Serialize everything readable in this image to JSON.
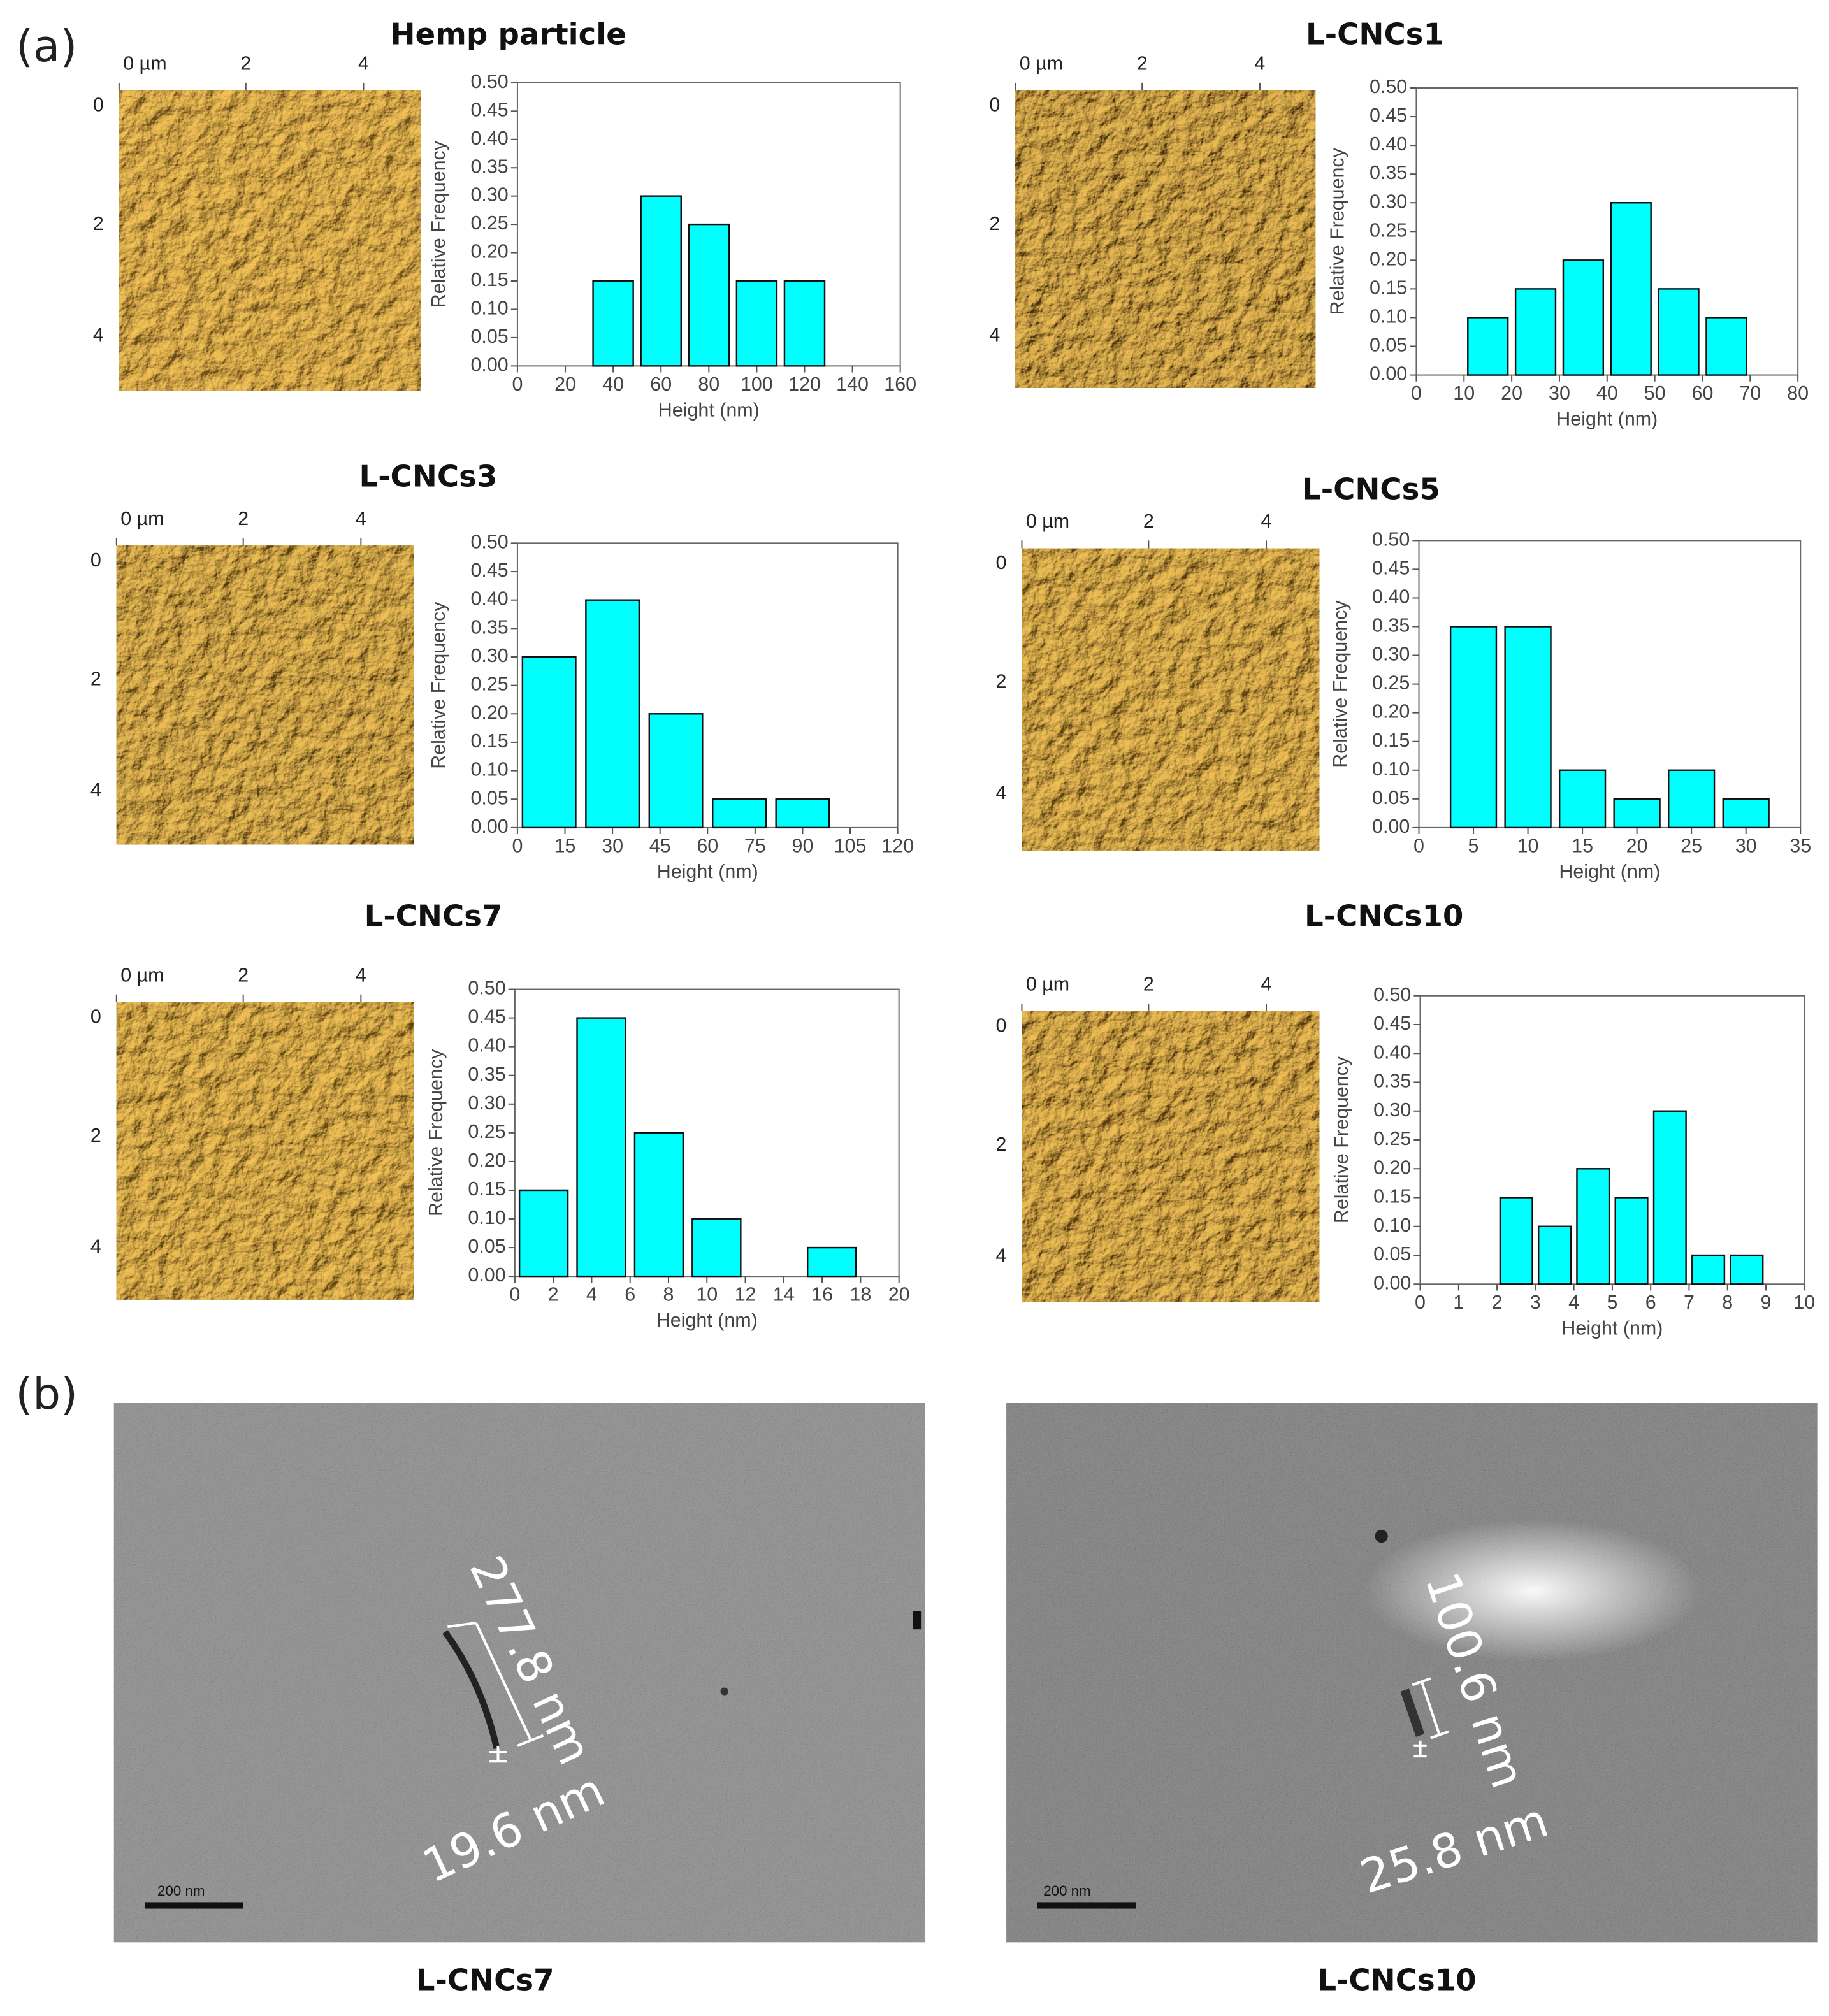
{
  "panel_labels": [
    "(a)",
    "(b)"
  ],
  "afm_axis": {
    "x_labels": [
      "0 µm",
      "2",
      "4"
    ],
    "y_labels": [
      "0",
      "2",
      "4"
    ]
  },
  "tem_images": [
    {
      "label": "L-CNCs7",
      "annotations": [
        "277.8 nm",
        "19.6 nm"
      ],
      "scale_bar": "200 nm"
    },
    {
      "label": "L-CNCs10",
      "annotations": [
        "100.6 nm",
        "25.8 nm"
      ],
      "scale_bar": "200 nm"
    }
  ],
  "chart_data": [
    {
      "type": "bar",
      "title": "Hemp particle",
      "x_label": "Height (nm)",
      "y_label": "Relative Frequency",
      "color": "#00ffff",
      "x": [
        40,
        60,
        80,
        100,
        120
      ],
      "values": [
        0.15,
        0.3,
        0.25,
        0.15,
        0.15
      ],
      "xlim": [
        0,
        160
      ],
      "xticks": [
        0,
        20,
        40,
        60,
        80,
        100,
        120,
        140,
        160
      ],
      "ylim": [
        0,
        0.5
      ],
      "yticks": [
        {
          "value": 0,
          "label": "0.00"
        },
        {
          "value": 0.05,
          "label": "0.05"
        },
        {
          "value": 0.1,
          "label": "0.10"
        },
        {
          "value": 0.15,
          "label": "0.15"
        },
        {
          "value": 0.2,
          "label": "0.20"
        },
        {
          "value": 0.25,
          "label": "0.25"
        },
        {
          "value": 0.3,
          "label": "0.30"
        },
        {
          "value": 0.35,
          "label": "0.35"
        },
        {
          "value": 0.4,
          "label": "0.40"
        },
        {
          "value": 0.45,
          "label": "0.45"
        },
        {
          "value": 0.5,
          "label": "0.50"
        }
      ]
    },
    {
      "type": "bar",
      "title": "L-CNCs1",
      "x_label": "Height (nm)",
      "y_label": "Relative Frequency",
      "color": "#00ffff",
      "x": [
        15,
        25,
        35,
        45,
        55,
        65
      ],
      "values": [
        0.1,
        0.15,
        0.2,
        0.3,
        0.15,
        0.1
      ],
      "xlim": [
        0,
        80
      ],
      "xticks": [
        0,
        10,
        20,
        30,
        40,
        50,
        60,
        70,
        80
      ],
      "ylim": [
        0,
        0.5
      ],
      "yticks": [
        {
          "value": 0,
          "label": "0.00"
        },
        {
          "value": 0.05,
          "label": "0.05"
        },
        {
          "value": 0.1,
          "label": "0.10"
        },
        {
          "value": 0.15,
          "label": "0.15"
        },
        {
          "value": 0.2,
          "label": "0.20"
        },
        {
          "value": 0.25,
          "label": "0.25"
        },
        {
          "value": 0.3,
          "label": "0.30"
        },
        {
          "value": 0.35,
          "label": "0.35"
        },
        {
          "value": 0.4,
          "label": "0.40"
        },
        {
          "value": 0.45,
          "label": "0.45"
        },
        {
          "value": 0.5,
          "label": "0.50"
        }
      ]
    },
    {
      "type": "bar",
      "title": "L-CNCs3",
      "x_label": "Height (nm)",
      "y_label": "Relative Frequency",
      "color": "#00ffff",
      "x": [
        10,
        30,
        50,
        70,
        90
      ],
      "values": [
        0.3,
        0.4,
        0.2,
        0.05,
        0.05
      ],
      "xlim": [
        0,
        120
      ],
      "xticks": [
        0,
        15,
        30,
        45,
        60,
        75,
        90,
        105,
        120
      ],
      "ylim": [
        0,
        0.5
      ],
      "yticks": [
        {
          "value": 0,
          "label": "0.00"
        },
        {
          "value": 0.05,
          "label": "0.05"
        },
        {
          "value": 0.1,
          "label": "0.10"
        },
        {
          "value": 0.15,
          "label": "0.15"
        },
        {
          "value": 0.2,
          "label": "0.20"
        },
        {
          "value": 0.25,
          "label": "0.25"
        },
        {
          "value": 0.3,
          "label": "0.30"
        },
        {
          "value": 0.35,
          "label": "0.35"
        },
        {
          "value": 0.4,
          "label": "0.40"
        },
        {
          "value": 0.45,
          "label": "0.45"
        },
        {
          "value": 0.5,
          "label": "0.50"
        }
      ]
    },
    {
      "type": "bar",
      "title": "L-CNCs5",
      "x_label": "Height (nm)",
      "y_label": "Relative Frequency",
      "color": "#00ffff",
      "x": [
        5,
        10,
        15,
        20,
        25,
        30
      ],
      "values": [
        0.35,
        0.35,
        0.1,
        0.05,
        0.1,
        0.05
      ],
      "xlim": [
        0,
        35
      ],
      "xticks": [
        0,
        5,
        10,
        15,
        20,
        25,
        30,
        35
      ],
      "ylim": [
        0,
        0.5
      ],
      "yticks": [
        {
          "value": 0,
          "label": "0.00"
        },
        {
          "value": 0.05,
          "label": "0.05"
        },
        {
          "value": 0.1,
          "label": "0.10"
        },
        {
          "value": 0.15,
          "label": "0.15"
        },
        {
          "value": 0.2,
          "label": "0.20"
        },
        {
          "value": 0.25,
          "label": "0.25"
        },
        {
          "value": 0.3,
          "label": "0.30"
        },
        {
          "value": 0.35,
          "label": "0.35"
        },
        {
          "value": 0.4,
          "label": "0.40"
        },
        {
          "value": 0.45,
          "label": "0.45"
        },
        {
          "value": 0.5,
          "label": "0.50"
        }
      ]
    },
    {
      "type": "bar",
      "title": "L-CNCs7",
      "x_label": "Height (nm)",
      "y_label": "Relative Frequency",
      "color": "#00ffff",
      "x": [
        1.5,
        4.5,
        7.5,
        10.5,
        16.5
      ],
      "values": [
        0.15,
        0.45,
        0.25,
        0.1,
        0.05
      ],
      "xlim": [
        0,
        20
      ],
      "xticks": [
        0,
        2,
        4,
        6,
        8,
        10,
        12,
        14,
        16,
        18,
        20
      ],
      "ylim": [
        0,
        0.5
      ],
      "yticks": [
        {
          "value": 0,
          "label": "0.00"
        },
        {
          "value": 0.05,
          "label": "0.05"
        },
        {
          "value": 0.1,
          "label": "0.10"
        },
        {
          "value": 0.15,
          "label": "0.15"
        },
        {
          "value": 0.2,
          "label": "0.20"
        },
        {
          "value": 0.25,
          "label": "0.25"
        },
        {
          "value": 0.3,
          "label": "0.30"
        },
        {
          "value": 0.35,
          "label": "0.35"
        },
        {
          "value": 0.4,
          "label": "0.40"
        },
        {
          "value": 0.45,
          "label": "0.45"
        },
        {
          "value": 0.5,
          "label": "0.50"
        }
      ]
    },
    {
      "type": "bar",
      "title": "L-CNCs10",
      "x_label": "Height (nm)",
      "y_label": "Relative Frequency",
      "color": "#00ffff",
      "x": [
        2.5,
        3.5,
        4.5,
        5.5,
        6.5,
        7.5,
        8.5
      ],
      "values": [
        0.15,
        0.1,
        0.2,
        0.15,
        0.3,
        0.05,
        0.05
      ],
      "xlim": [
        0,
        10
      ],
      "xticks": [
        0,
        1,
        2,
        3,
        4,
        5,
        6,
        7,
        8,
        9,
        10
      ],
      "ylim": [
        0,
        0.5
      ],
      "yticks": [
        {
          "value": 0,
          "label": "0.00"
        },
        {
          "value": 0.05,
          "label": "0.05"
        },
        {
          "value": 0.1,
          "label": "0.10"
        },
        {
          "value": 0.15,
          "label": "0.15"
        },
        {
          "value": 0.2,
          "label": "0.20"
        },
        {
          "value": 0.25,
          "label": "0.25"
        },
        {
          "value": 0.3,
          "label": "0.30"
        },
        {
          "value": 0.35,
          "label": "0.35"
        },
        {
          "value": 0.4,
          "label": "0.40"
        },
        {
          "value": 0.45,
          "label": "0.45"
        },
        {
          "value": 0.5,
          "label": "0.50"
        }
      ]
    }
  ]
}
